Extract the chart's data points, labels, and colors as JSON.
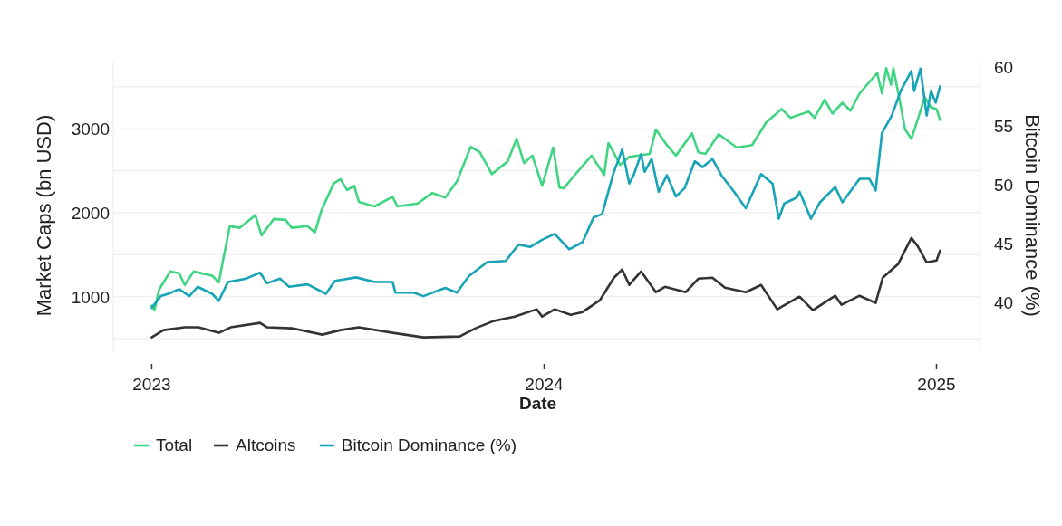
{
  "chart_data": {
    "type": "line",
    "xlabel": "Date",
    "ylabel": "Market Caps (bn USD)",
    "y2label": "Bitcoin Dominance (%)",
    "xlim": [
      2022.902,
      2025.112
    ],
    "xticks": [
      2023,
      2024,
      2025
    ],
    "ylim": [
      350,
      3800
    ],
    "yticks": [
      {
        "value": 500,
        "label": null
      },
      1000,
      {
        "value": 1500,
        "label": null
      },
      2000,
      {
        "value": 2500,
        "label": null
      },
      3000,
      {
        "value": 3500,
        "label": null
      }
    ],
    "y2lim": [
      35.8,
      60.5
    ],
    "y2ticks": [
      40,
      45,
      50,
      55,
      60
    ],
    "grid": "y",
    "legend": "bottom",
    "series": [
      {
        "name": "Total",
        "color": "#3fd581",
        "x": [
          2023.0,
          2023.007,
          2023.019,
          2023.047,
          2023.07,
          2023.084,
          2023.107,
          2023.154,
          2023.171,
          2023.182,
          2023.199,
          2023.224,
          2023.264,
          2023.28,
          2023.311,
          2023.341,
          2023.357,
          2023.397,
          2023.416,
          2023.432,
          2023.463,
          2023.481,
          2023.498,
          2023.516,
          2023.528,
          2023.568,
          2023.614,
          2023.626,
          2023.678,
          2023.715,
          2023.748,
          2023.778,
          2023.813,
          2023.836,
          2023.867,
          2023.907,
          2023.93,
          2023.949,
          2023.97,
          2023.995,
          2024.023,
          2024.039,
          2024.05,
          2024.08,
          2024.121,
          2024.153,
          2024.164,
          2024.194,
          2024.217,
          2024.269,
          2024.285,
          2024.313,
          2024.336,
          2024.377,
          2024.393,
          2024.411,
          2024.445,
          2024.491,
          2024.53,
          2024.566,
          2024.605,
          2024.628,
          2024.674,
          2024.689,
          2024.715,
          2024.735,
          2024.76,
          2024.781,
          2024.804,
          2024.849,
          2024.861,
          2024.872,
          2024.884,
          2024.89,
          2024.906,
          2024.92,
          2024.936,
          2024.952,
          2024.97,
          2024.986,
          2025.0,
          2025.009
        ],
        "values": [
          893,
          840,
          1086,
          1300,
          1280,
          1140,
          1300,
          1250,
          1170,
          1440,
          1840,
          1820,
          1970,
          1730,
          1925,
          1915,
          1820,
          1840,
          1765,
          2020,
          2345,
          2400,
          2270,
          2320,
          2130,
          2075,
          2190,
          2075,
          2110,
          2235,
          2180,
          2375,
          2785,
          2720,
          2460,
          2610,
          2880,
          2590,
          2680,
          2320,
          2775,
          2300,
          2290,
          2460,
          2680,
          2450,
          2830,
          2570,
          2665,
          2700,
          2990,
          2805,
          2680,
          2945,
          2720,
          2700,
          2935,
          2775,
          2805,
          3075,
          3235,
          3130,
          3205,
          3130,
          3345,
          3180,
          3310,
          3215,
          3420,
          3665,
          3420,
          3720,
          3525,
          3720,
          3345,
          2990,
          2880,
          3105,
          3375,
          3255,
          3235,
          3105
        ]
      },
      {
        "name": "Altcoins",
        "color": "#333333",
        "x": [
          2023.0,
          2023.03,
          2023.084,
          2023.119,
          2023.171,
          2023.201,
          2023.276,
          2023.294,
          2023.357,
          2023.435,
          2023.481,
          2023.528,
          2023.614,
          2023.692,
          2023.785,
          2023.825,
          2023.871,
          2023.925,
          2023.981,
          2023.995,
          2024.027,
          2024.068,
          2024.098,
          2024.142,
          2024.178,
          2024.199,
          2024.217,
          2024.247,
          2024.285,
          2024.308,
          2024.361,
          2024.393,
          2024.429,
          2024.461,
          2024.514,
          2024.553,
          2024.594,
          2024.651,
          2024.685,
          2024.742,
          2024.758,
          2024.804,
          2024.845,
          2024.863,
          2024.902,
          2024.936,
          2024.952,
          2024.975,
          2025.0,
          2025.009
        ],
        "values": [
          516,
          602,
          635,
          635,
          570,
          635,
          688,
          635,
          624,
          548,
          602,
          635,
          570,
          516,
          527,
          624,
          710,
          763,
          850,
          763,
          850,
          785,
          817,
          957,
          1226,
          1323,
          1140,
          1301,
          1054,
          1118,
          1054,
          1215,
          1226,
          1108,
          1054,
          1140,
          850,
          1000,
          839,
          1011,
          903,
          1011,
          925,
          1226,
          1387,
          1699,
          1602,
          1409,
          1430,
          1548
        ]
      },
      {
        "name": "Bitcoin Dominance (%)",
        "color": "#17a4b6",
        "axis": "y2",
        "x": [
          2023.0,
          2023.023,
          2023.042,
          2023.07,
          2023.096,
          2023.117,
          2023.154,
          2023.171,
          2023.194,
          2023.241,
          2023.276,
          2023.294,
          2023.327,
          2023.35,
          2023.397,
          2023.444,
          2023.467,
          2023.521,
          2023.568,
          2023.614,
          2023.621,
          2023.668,
          2023.692,
          2023.748,
          2023.778,
          2023.808,
          2023.855,
          2023.902,
          2023.935,
          2023.965,
          2023.995,
          2024.027,
          2024.064,
          2024.098,
          2024.126,
          2024.148,
          2024.176,
          2024.199,
          2024.217,
          2024.228,
          2024.247,
          2024.256,
          2024.274,
          2024.292,
          2024.313,
          2024.336,
          2024.358,
          2024.384,
          2024.404,
          2024.429,
          2024.452,
          2024.484,
          2024.514,
          2024.553,
          2024.582,
          2024.598,
          2024.612,
          2024.644,
          2024.651,
          2024.68,
          2024.703,
          2024.742,
          2024.76,
          2024.804,
          2024.829,
          2024.845,
          2024.861,
          2024.886,
          2024.909,
          2024.936,
          2024.943,
          2024.959,
          2024.975,
          2024.986,
          2024.998,
          2025.009
        ],
        "values": [
          39.5,
          40.5,
          40.7,
          41.1,
          40.5,
          41.3,
          40.7,
          40.1,
          41.7,
          42.0,
          42.5,
          41.6,
          42.0,
          41.3,
          41.5,
          40.7,
          41.8,
          42.1,
          41.7,
          41.7,
          40.8,
          40.8,
          40.5,
          41.2,
          40.8,
          42.2,
          43.4,
          43.5,
          44.9,
          44.7,
          45.3,
          45.8,
          44.5,
          45.1,
          47.2,
          47.5,
          50.9,
          53.0,
          50.1,
          50.8,
          52.6,
          51.1,
          52.2,
          49.4,
          50.8,
          49.0,
          49.7,
          52.0,
          51.5,
          52.2,
          50.8,
          49.4,
          48.0,
          50.9,
          50.1,
          47.1,
          48.4,
          48.9,
          49.4,
          47.1,
          48.5,
          49.8,
          48.5,
          50.5,
          50.5,
          49.5,
          54.4,
          55.9,
          58.0,
          59.7,
          58.0,
          59.9,
          55.9,
          58.0,
          57.0,
          58.4
        ]
      }
    ]
  }
}
